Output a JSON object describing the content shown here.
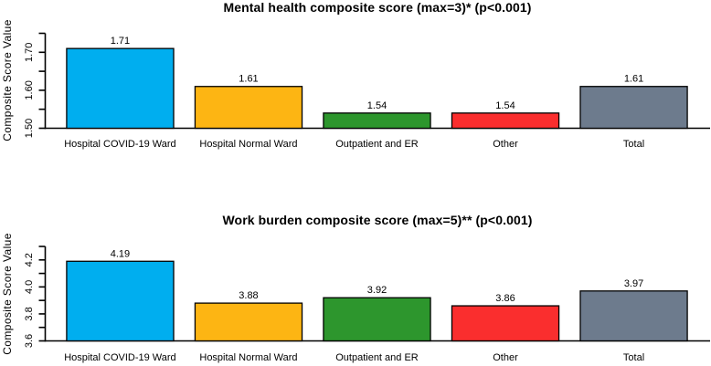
{
  "figure": {
    "background": "#ffffff",
    "text_color": "#000000"
  },
  "chart_data": [
    {
      "type": "bar",
      "title": "Mental health composite score (max=3)* (p<0.001)",
      "ylabel": "Composite Score Value",
      "xlabel": "",
      "categories": [
        "Hospital COVID-19 Ward",
        "Hospital Normal Ward",
        "Outpatient and ER",
        "Other",
        "Total"
      ],
      "values": [
        1.71,
        1.61,
        1.54,
        1.54,
        1.61
      ],
      "value_labels": [
        "1.71",
        "1.61",
        "1.54",
        "1.54",
        "1.61"
      ],
      "bar_colors": [
        "#00AEEF",
        "#FDB513",
        "#2D962D",
        "#FA2E2E",
        "#6D7B8D"
      ],
      "bar_border_color": "#000000",
      "axis_color": "#000000",
      "ylim": [
        1.5,
        1.75
      ],
      "yticks": [
        {
          "value": 1.5,
          "label": "1.50"
        },
        {
          "value": 1.55,
          "label": ""
        },
        {
          "value": 1.6,
          "label": "1.60"
        },
        {
          "value": 1.65,
          "label": ""
        },
        {
          "value": 1.7,
          "label": "1.70"
        },
        {
          "value": 1.75,
          "label": ""
        }
      ],
      "grid": false,
      "legend": null
    },
    {
      "type": "bar",
      "title": "Work burden composite score (max=5)** (p<0.001)",
      "ylabel": "Composite Score Value",
      "xlabel": "",
      "categories": [
        "Hospital COVID-19 Ward",
        "Hospital Normal Ward",
        "Outpatient and ER",
        "Other",
        "Total"
      ],
      "values": [
        4.19,
        3.88,
        3.92,
        3.86,
        3.97
      ],
      "value_labels": [
        "4.19",
        "3.88",
        "3.92",
        "3.86",
        "3.97"
      ],
      "bar_colors": [
        "#00AEEF",
        "#FDB513",
        "#2D962D",
        "#FA2E2E",
        "#6D7B8D"
      ],
      "bar_border_color": "#000000",
      "axis_color": "#000000",
      "ylim": [
        3.6,
        4.3
      ],
      "yticks": [
        {
          "value": 3.6,
          "label": "3.6"
        },
        {
          "value": 3.7,
          "label": ""
        },
        {
          "value": 3.8,
          "label": "3.8"
        },
        {
          "value": 3.9,
          "label": ""
        },
        {
          "value": 4.0,
          "label": "4.0"
        },
        {
          "value": 4.1,
          "label": ""
        },
        {
          "value": 4.2,
          "label": "4.2"
        },
        {
          "value": 4.3,
          "label": ""
        }
      ],
      "grid": false,
      "legend": null
    }
  ]
}
